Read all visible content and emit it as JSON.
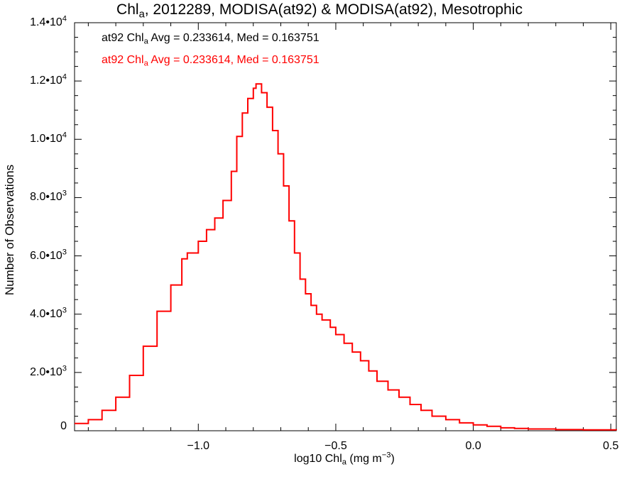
{
  "chart_data": {
    "type": "line",
    "title_parts": {
      "pre": "Chl",
      "sub": "a",
      "post": ", 2012289, MODISA(at92) & MODISA(at92), Mesotrophic"
    },
    "xlabel_parts": {
      "pre": "log10 Chl",
      "sub": "a",
      "mid": " (mg m",
      "sup": "−3",
      "post": ")"
    },
    "ylabel": "Number of Observations",
    "xlim": [
      -1.45,
      0.52
    ],
    "ylim": [
      0,
      14000
    ],
    "x_ticks": [
      {
        "value": -1.0,
        "label": "−1.0"
      },
      {
        "value": -0.5,
        "label": "−0.5"
      },
      {
        "value": 0.0,
        "label": "0.0"
      },
      {
        "value": 0.5,
        "label": "0.5"
      }
    ],
    "y_ticks": [
      {
        "value": 0,
        "label": "0"
      },
      {
        "value": 2000,
        "label": "2.0•10",
        "exp": "3"
      },
      {
        "value": 4000,
        "label": "4.0•10",
        "exp": "3"
      },
      {
        "value": 6000,
        "label": "6.0•10",
        "exp": "3"
      },
      {
        "value": 8000,
        "label": "8.0•10",
        "exp": "3"
      },
      {
        "value": 10000,
        "label": "1.0•10",
        "exp": "4"
      },
      {
        "value": 12000,
        "label": "1.2•10",
        "exp": "4"
      },
      {
        "value": 14000,
        "label": "1.4•10",
        "exp": "4"
      }
    ],
    "legend": [
      {
        "pre": "at92 Chl",
        "sub": "a",
        "post": " Avg = 0.233614, Med = 0.163751",
        "color": "#000000"
      },
      {
        "pre": "at92 Chl",
        "sub": "a",
        "post": " Avg = 0.233614, Med = 0.163751",
        "color": "#ff0000"
      }
    ],
    "series": [
      {
        "color": "#ff0000",
        "step": true,
        "x": [
          -1.45,
          -1.4,
          -1.35,
          -1.3,
          -1.25,
          -1.2,
          -1.15,
          -1.1,
          -1.06,
          -1.04,
          -1.0,
          -0.97,
          -0.94,
          -0.91,
          -0.88,
          -0.86,
          -0.84,
          -0.82,
          -0.8,
          -0.79,
          -0.77,
          -0.75,
          -0.73,
          -0.71,
          -0.69,
          -0.67,
          -0.65,
          -0.63,
          -0.61,
          -0.59,
          -0.57,
          -0.55,
          -0.52,
          -0.5,
          -0.47,
          -0.44,
          -0.41,
          -0.38,
          -0.35,
          -0.31,
          -0.27,
          -0.23,
          -0.19,
          -0.15,
          -0.1,
          -0.05,
          0.0,
          0.05,
          0.1,
          0.15,
          0.2,
          0.3,
          0.4,
          0.52
        ],
        "y": [
          250,
          380,
          700,
          1150,
          1900,
          2900,
          4100,
          5000,
          5900,
          6100,
          6500,
          6900,
          7300,
          7900,
          8900,
          10100,
          10900,
          11400,
          11750,
          11900,
          11600,
          11100,
          10300,
          9500,
          8400,
          7200,
          6100,
          5200,
          4700,
          4300,
          4000,
          3800,
          3550,
          3300,
          3000,
          2700,
          2400,
          2050,
          1700,
          1400,
          1150,
          900,
          700,
          500,
          380,
          270,
          200,
          150,
          100,
          80,
          60,
          40,
          30,
          20
        ]
      }
    ]
  }
}
